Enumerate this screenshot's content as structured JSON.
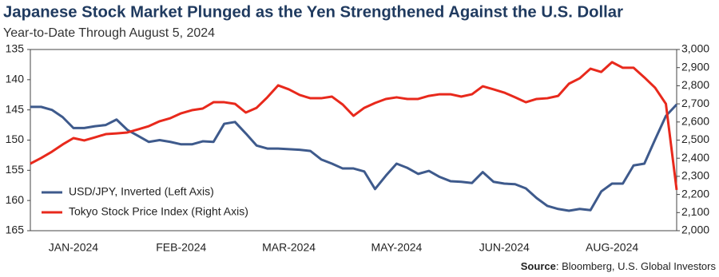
{
  "chart_data": {
    "type": "line",
    "title": "Japanese Stock Market Plunged as the Yen Strengthened Against the U.S. Dollar",
    "subtitle": "Year-to-Date Through August 5, 2024",
    "source": {
      "label": "Source",
      "text": ": Bloomberg, U.S. Global Investors"
    },
    "categories": [
      null,
      null,
      null,
      null,
      "JAN-2024",
      null,
      null,
      null,
      null,
      null,
      null,
      null,
      null,
      null,
      "FEB-2024",
      null,
      null,
      null,
      null,
      null,
      null,
      null,
      null,
      null,
      "MAR-2024",
      null,
      null,
      null,
      null,
      null,
      null,
      null,
      null,
      null,
      "MAY-2024",
      null,
      null,
      null,
      null,
      null,
      null,
      null,
      null,
      null,
      "JUN-2024",
      null,
      null,
      null,
      null,
      null,
      null,
      null,
      null,
      null,
      "AUG-2024",
      null,
      null,
      null,
      null,
      null,
      null
    ],
    "series": [
      {
        "name": "USD/JPY, Inverted (Left Axis)",
        "color": "#3e5a8c",
        "axis": "y",
        "values": [
          144.5,
          144.5,
          145,
          146.2,
          148,
          148,
          147.7,
          147.5,
          146.6,
          148.3,
          149.3,
          150.3,
          150,
          150.3,
          150.7,
          150.7,
          150.2,
          150.3,
          147.3,
          147,
          148.9,
          150.9,
          151.4,
          151.4,
          151.5,
          151.6,
          151.8,
          153.2,
          153.9,
          154.7,
          154.7,
          155.2,
          158.1,
          155.9,
          153.9,
          154.6,
          155.6,
          155.1,
          156.1,
          156.8,
          156.9,
          157.1,
          155.3,
          156.9,
          157.2,
          157.3,
          158,
          159.6,
          160.9,
          161.4,
          161.7,
          161.4,
          161.6,
          158.5,
          157.2,
          157.2,
          154.2,
          153.9,
          149.9,
          146,
          144.1
        ]
      },
      {
        "name": "Tokyo Stock Price Index (Right Axis)",
        "color": "#e8291c",
        "axis": "y2",
        "values": [
          2370,
          2401,
          2436,
          2476,
          2511,
          2498,
          2515,
          2533,
          2537,
          2542,
          2559,
          2577,
          2604,
          2621,
          2648,
          2665,
          2674,
          2709,
          2709,
          2700,
          2652,
          2678,
          2736,
          2802,
          2780,
          2749,
          2731,
          2731,
          2740,
          2696,
          2634,
          2678,
          2705,
          2727,
          2736,
          2727,
          2727,
          2744,
          2753,
          2753,
          2740,
          2753,
          2797,
          2780,
          2762,
          2736,
          2709,
          2727,
          2731,
          2744,
          2811,
          2841,
          2894,
          2876,
          2930,
          2899,
          2899,
          2846,
          2789,
          2700,
          2225
        ]
      }
    ],
    "ylim": [
      135,
      165
    ],
    "yinvert": true,
    "yticks": [
      135,
      140,
      145,
      150,
      155,
      160,
      165
    ],
    "y2lim": [
      2000,
      3000
    ],
    "y2ticks": [
      {
        "value": 2000,
        "label": "2,000"
      },
      {
        "value": 2100,
        "label": "2,100"
      },
      {
        "value": 2200,
        "label": "2,200"
      },
      {
        "value": 2300,
        "label": "2,300"
      },
      {
        "value": 2400,
        "label": "2,400"
      },
      {
        "value": 2500,
        "label": "2,500"
      },
      {
        "value": 2600,
        "label": "2,600"
      },
      {
        "value": 2700,
        "label": "2,700"
      },
      {
        "value": 2800,
        "label": "2,800"
      },
      {
        "value": 2900,
        "label": "2,900"
      },
      {
        "value": 3000,
        "label": "3,000"
      }
    ],
    "legend": "lower-left"
  }
}
